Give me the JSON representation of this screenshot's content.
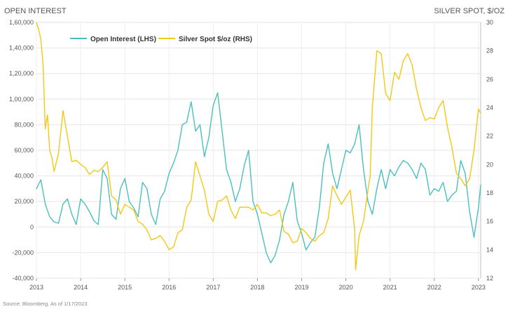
{
  "chart_data": {
    "type": "line",
    "title_left": "OPEN INTEREST",
    "title_right": "SILVER SPOT, $/OZ",
    "source": "Source: Bloomberg. As of 1/17/2023",
    "x_ticks": [
      "2013",
      "2014",
      "2015",
      "2016",
      "2017",
      "2018",
      "2019",
      "2020",
      "2021",
      "2022",
      "2023"
    ],
    "y_left": {
      "ylim": [
        -40000,
        160000
      ],
      "tick_values": [
        -40000,
        -20000,
        0,
        20000,
        40000,
        60000,
        80000,
        100000,
        120000,
        140000,
        160000
      ],
      "tick_labels": [
        "-40,000",
        "-20,000",
        "0",
        "20,000",
        "40,000",
        "60,000",
        "80,000",
        "1,00,000",
        "1,20,000",
        "1,40,000",
        "1,60,000"
      ]
    },
    "y_right": {
      "ylim": [
        12,
        30
      ],
      "tick_values": [
        12,
        14,
        16,
        18,
        20,
        22,
        24,
        26,
        28,
        30
      ],
      "tick_labels": [
        "12",
        "14",
        "16",
        "18",
        "20",
        "22",
        "24",
        "26",
        "28",
        "30"
      ]
    },
    "xlim": [
      2013.0,
      2023.05
    ],
    "legend_position": "top-left",
    "series": [
      {
        "name": "Open Interest (LHS)",
        "axis": "left",
        "color": "#4BBFC0",
        "x": [
          2013.0,
          2013.1,
          2013.2,
          2013.3,
          2013.4,
          2013.5,
          2013.6,
          2013.7,
          2013.8,
          2013.9,
          2014.0,
          2014.1,
          2014.2,
          2014.3,
          2014.4,
          2014.5,
          2014.6,
          2014.7,
          2014.8,
          2014.9,
          2015.0,
          2015.1,
          2015.2,
          2015.3,
          2015.4,
          2015.5,
          2015.6,
          2015.7,
          2015.8,
          2015.9,
          2016.0,
          2016.1,
          2016.2,
          2016.3,
          2016.4,
          2016.5,
          2016.6,
          2016.7,
          2016.8,
          2016.9,
          2017.0,
          2017.1,
          2017.2,
          2017.3,
          2017.4,
          2017.5,
          2017.6,
          2017.7,
          2017.8,
          2017.9,
          2018.0,
          2018.1,
          2018.2,
          2018.3,
          2018.4,
          2018.5,
          2018.6,
          2018.7,
          2018.8,
          2018.9,
          2019.0,
          2019.1,
          2019.2,
          2019.3,
          2019.4,
          2019.5,
          2019.6,
          2019.7,
          2019.8,
          2019.9,
          2020.0,
          2020.1,
          2020.2,
          2020.3,
          2020.4,
          2020.5,
          2020.6,
          2020.7,
          2020.8,
          2020.9,
          2021.0,
          2021.1,
          2021.2,
          2021.3,
          2021.4,
          2021.5,
          2021.6,
          2021.7,
          2021.8,
          2021.9,
          2022.0,
          2022.1,
          2022.2,
          2022.3,
          2022.4,
          2022.5,
          2022.6,
          2022.7,
          2022.8,
          2022.9,
          2023.0,
          2023.05
        ],
        "values": [
          30000,
          37000,
          18000,
          8000,
          4000,
          3000,
          18000,
          22000,
          10000,
          2000,
          22000,
          18000,
          12000,
          5000,
          2000,
          45000,
          38000,
          10000,
          6000,
          30000,
          38000,
          20000,
          15000,
          8000,
          35000,
          30000,
          10000,
          2000,
          22000,
          28000,
          42000,
          50000,
          60000,
          80000,
          82000,
          98000,
          75000,
          80000,
          55000,
          70000,
          95000,
          105000,
          75000,
          45000,
          35000,
          20000,
          30000,
          48000,
          60000,
          20000,
          10000,
          -5000,
          -20000,
          -28000,
          -22000,
          -10000,
          10000,
          20000,
          35000,
          5000,
          -5000,
          -18000,
          -12000,
          -8000,
          15000,
          50000,
          65000,
          42000,
          30000,
          45000,
          60000,
          58000,
          65000,
          80000,
          45000,
          20000,
          10000,
          30000,
          45000,
          30000,
          45000,
          40000,
          47000,
          52000,
          50000,
          45000,
          38000,
          50000,
          45000,
          25000,
          30000,
          28000,
          35000,
          20000,
          25000,
          28000,
          52000,
          42000,
          12000,
          -8000,
          15000,
          33000
        ]
      },
      {
        "name": "Silver Spot $/oz (RHS)",
        "axis": "right",
        "color": "#F2C818",
        "x": [
          2013.0,
          2013.05,
          2013.1,
          2013.15,
          2013.2,
          2013.25,
          2013.3,
          2013.35,
          2013.4,
          2013.5,
          2013.6,
          2013.7,
          2013.8,
          2013.9,
          2014.0,
          2014.1,
          2014.2,
          2014.3,
          2014.4,
          2014.5,
          2014.6,
          2014.7,
          2014.8,
          2014.9,
          2015.0,
          2015.1,
          2015.2,
          2015.3,
          2015.4,
          2015.5,
          2015.6,
          2015.7,
          2015.8,
          2015.9,
          2016.0,
          2016.1,
          2016.2,
          2016.3,
          2016.4,
          2016.5,
          2016.6,
          2016.7,
          2016.8,
          2016.9,
          2017.0,
          2017.1,
          2017.2,
          2017.3,
          2017.4,
          2017.5,
          2017.6,
          2017.7,
          2017.8,
          2017.9,
          2018.0,
          2018.1,
          2018.2,
          2018.3,
          2018.4,
          2018.5,
          2018.6,
          2018.7,
          2018.8,
          2018.9,
          2019.0,
          2019.1,
          2019.2,
          2019.3,
          2019.4,
          2019.5,
          2019.6,
          2019.7,
          2019.8,
          2019.9,
          2020.0,
          2020.1,
          2020.2,
          2020.22,
          2020.3,
          2020.4,
          2020.5,
          2020.55,
          2020.6,
          2020.7,
          2020.8,
          2020.9,
          2021.0,
          2021.1,
          2021.2,
          2021.3,
          2021.4,
          2021.5,
          2021.6,
          2021.7,
          2021.8,
          2021.9,
          2022.0,
          2022.1,
          2022.2,
          2022.3,
          2022.4,
          2022.5,
          2022.6,
          2022.7,
          2022.8,
          2022.9,
          2023.0,
          2023.05
        ],
        "values": [
          30,
          29.5,
          28.8,
          27,
          22.5,
          23.5,
          21,
          20.5,
          19.5,
          20.8,
          23.8,
          22,
          20.2,
          20.3,
          20,
          19.8,
          19.3,
          19.6,
          19.5,
          19.8,
          20.2,
          17.8,
          17.5,
          16.5,
          17.2,
          17,
          16.8,
          16,
          15.8,
          15.4,
          14.7,
          14.8,
          15,
          14.6,
          14,
          14.2,
          15.2,
          15.4,
          17,
          17.5,
          20.2,
          19.2,
          18.2,
          16.5,
          16,
          17.4,
          17.5,
          17.8,
          16.8,
          16.2,
          17,
          17,
          17,
          16.8,
          17.2,
          16.6,
          16.6,
          16.4,
          16.5,
          16.8,
          15.3,
          15.1,
          14.5,
          14.6,
          15.5,
          15.2,
          14.8,
          14.6,
          15,
          15.2,
          16.2,
          18.5,
          17.8,
          17.2,
          17.7,
          18.2,
          15.4,
          12.6,
          15,
          16,
          18.2,
          19.2,
          24,
          28,
          27.8,
          25,
          24.5,
          26.5,
          26,
          27.3,
          27.8,
          27,
          25.3,
          24,
          23.1,
          23.3,
          23.2,
          24,
          24.5,
          22.6,
          21.2,
          19.4,
          19,
          18.5,
          19,
          21,
          23.9,
          23.6
        ]
      }
    ]
  }
}
